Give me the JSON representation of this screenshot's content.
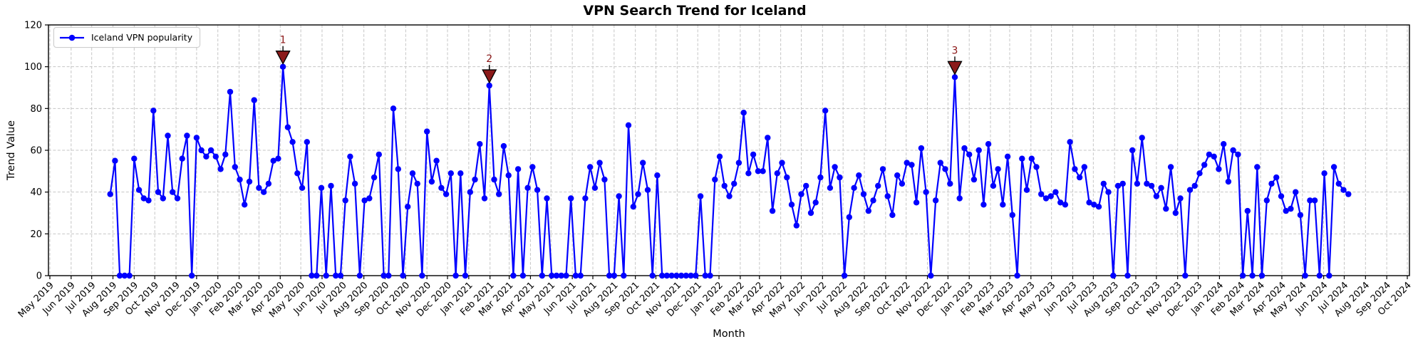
{
  "chart_data": {
    "type": "line",
    "title": "VPN Search Trend for Iceland",
    "xlabel": "Month",
    "ylabel": "Trend Value",
    "ylim": [
      0,
      120
    ],
    "y_ticks": [
      0,
      20,
      40,
      60,
      80,
      100,
      120
    ],
    "grid": true,
    "legend_position": "upper left",
    "x_tick_labels": [
      "May 2019",
      "Jun 2019",
      "Jul 2019",
      "Aug 2019",
      "Sep 2019",
      "Oct 2019",
      "Nov 2019",
      "Dec 2019",
      "Jan 2020",
      "Feb 2020",
      "Mar 2020",
      "Apr 2020",
      "May 2020",
      "Jun 2020",
      "Jul 2020",
      "Aug 2020",
      "Sep 2020",
      "Oct 2020",
      "Nov 2020",
      "Dec 2020",
      "Jan 2021",
      "Feb 2021",
      "Mar 2021",
      "Apr 2021",
      "May 2021",
      "Jun 2021",
      "Jul 2021",
      "Aug 2021",
      "Sep 2021",
      "Oct 2021",
      "Nov 2021",
      "Dec 2021",
      "Jan 2022",
      "Feb 2022",
      "Mar 2022",
      "Apr 2022",
      "May 2022",
      "Jun 2022",
      "Jul 2022",
      "Aug 2022",
      "Sep 2022",
      "Oct 2022",
      "Nov 2022",
      "Dec 2022",
      "Jan 2023",
      "Feb 2023",
      "Mar 2023",
      "Apr 2023",
      "May 2023",
      "Jun 2023",
      "Jul 2023",
      "Aug 2023",
      "Sep 2023",
      "Oct 2023",
      "Nov 2023",
      "Dec 2023",
      "Jan 2024",
      "Feb 2024",
      "Mar 2024",
      "Apr 2024",
      "May 2024",
      "Jun 2024",
      "Jul 2024",
      "Aug 2024",
      "Sep 2024",
      "Oct 2024"
    ],
    "series": [
      {
        "name": "Iceland VPN popularity",
        "color": "#0000ff",
        "marker": "circle",
        "start_date": "2019-07-28",
        "interval": "weekly",
        "values": [
          39,
          55,
          0,
          0,
          0,
          56,
          41,
          37,
          36,
          79,
          40,
          37,
          67,
          40,
          37,
          56,
          67,
          0,
          66,
          60,
          57,
          60,
          57,
          51,
          58,
          88,
          52,
          46,
          34,
          45,
          84,
          42,
          40,
          44,
          55,
          56,
          100,
          71,
          64,
          49,
          42,
          64,
          0,
          0,
          42,
          0,
          43,
          0,
          0,
          36,
          57,
          44,
          0,
          36,
          37,
          47,
          58,
          0,
          0,
          80,
          51,
          0,
          33,
          49,
          44,
          0,
          69,
          45,
          55,
          42,
          39,
          49,
          0,
          49,
          0,
          40,
          46,
          63,
          37,
          91,
          46,
          39,
          62,
          48,
          0,
          51,
          0,
          42,
          52,
          41,
          0,
          37,
          0,
          0,
          0,
          0,
          37,
          0,
          0,
          37,
          52,
          42,
          54,
          46,
          0,
          0,
          38,
          0,
          72,
          33,
          39,
          54,
          41,
          0,
          48,
          0,
          0,
          0,
          0,
          0,
          0,
          0,
          0,
          38,
          0,
          0,
          46,
          57,
          43,
          38,
          44,
          54,
          78,
          49,
          58,
          50,
          50,
          66,
          31,
          49,
          54,
          47,
          34,
          24,
          39,
          43,
          30,
          35,
          47,
          79,
          42,
          52,
          47,
          0,
          28,
          42,
          48,
          39,
          31,
          36,
          43,
          51,
          38,
          29,
          48,
          44,
          54,
          53,
          35,
          61,
          40,
          0,
          36,
          54,
          51,
          44,
          95,
          37,
          61,
          58,
          46,
          60,
          34,
          63,
          43,
          51,
          34,
          57,
          29,
          0,
          56,
          41,
          56,
          52,
          39,
          37,
          38,
          40,
          35,
          34,
          64,
          51,
          47,
          52,
          35,
          34,
          33,
          44,
          40,
          0,
          43,
          44,
          0,
          60,
          44,
          66,
          44,
          43,
          38,
          42,
          32,
          52,
          30,
          37,
          0,
          41,
          43,
          49,
          53,
          58,
          57,
          51,
          63,
          45,
          60,
          58,
          0,
          31,
          0,
          52,
          0,
          36,
          44,
          47,
          38,
          31,
          32,
          40,
          29,
          0,
          36,
          36,
          0,
          49,
          0,
          52,
          44,
          41,
          39
        ]
      }
    ],
    "annotations": [
      {
        "label": "1",
        "index": 36,
        "value": 100
      },
      {
        "label": "2",
        "index": 79,
        "value": 91
      },
      {
        "label": "3",
        "index": 176,
        "value": 95
      }
    ],
    "colors": {
      "line": "#0000ff",
      "annotation_fill": "#8b1a1a",
      "annotation_edge": "#000000",
      "annotation_text": "#8b1515",
      "grid": "#c6c6c6",
      "spine": "#000000"
    }
  }
}
